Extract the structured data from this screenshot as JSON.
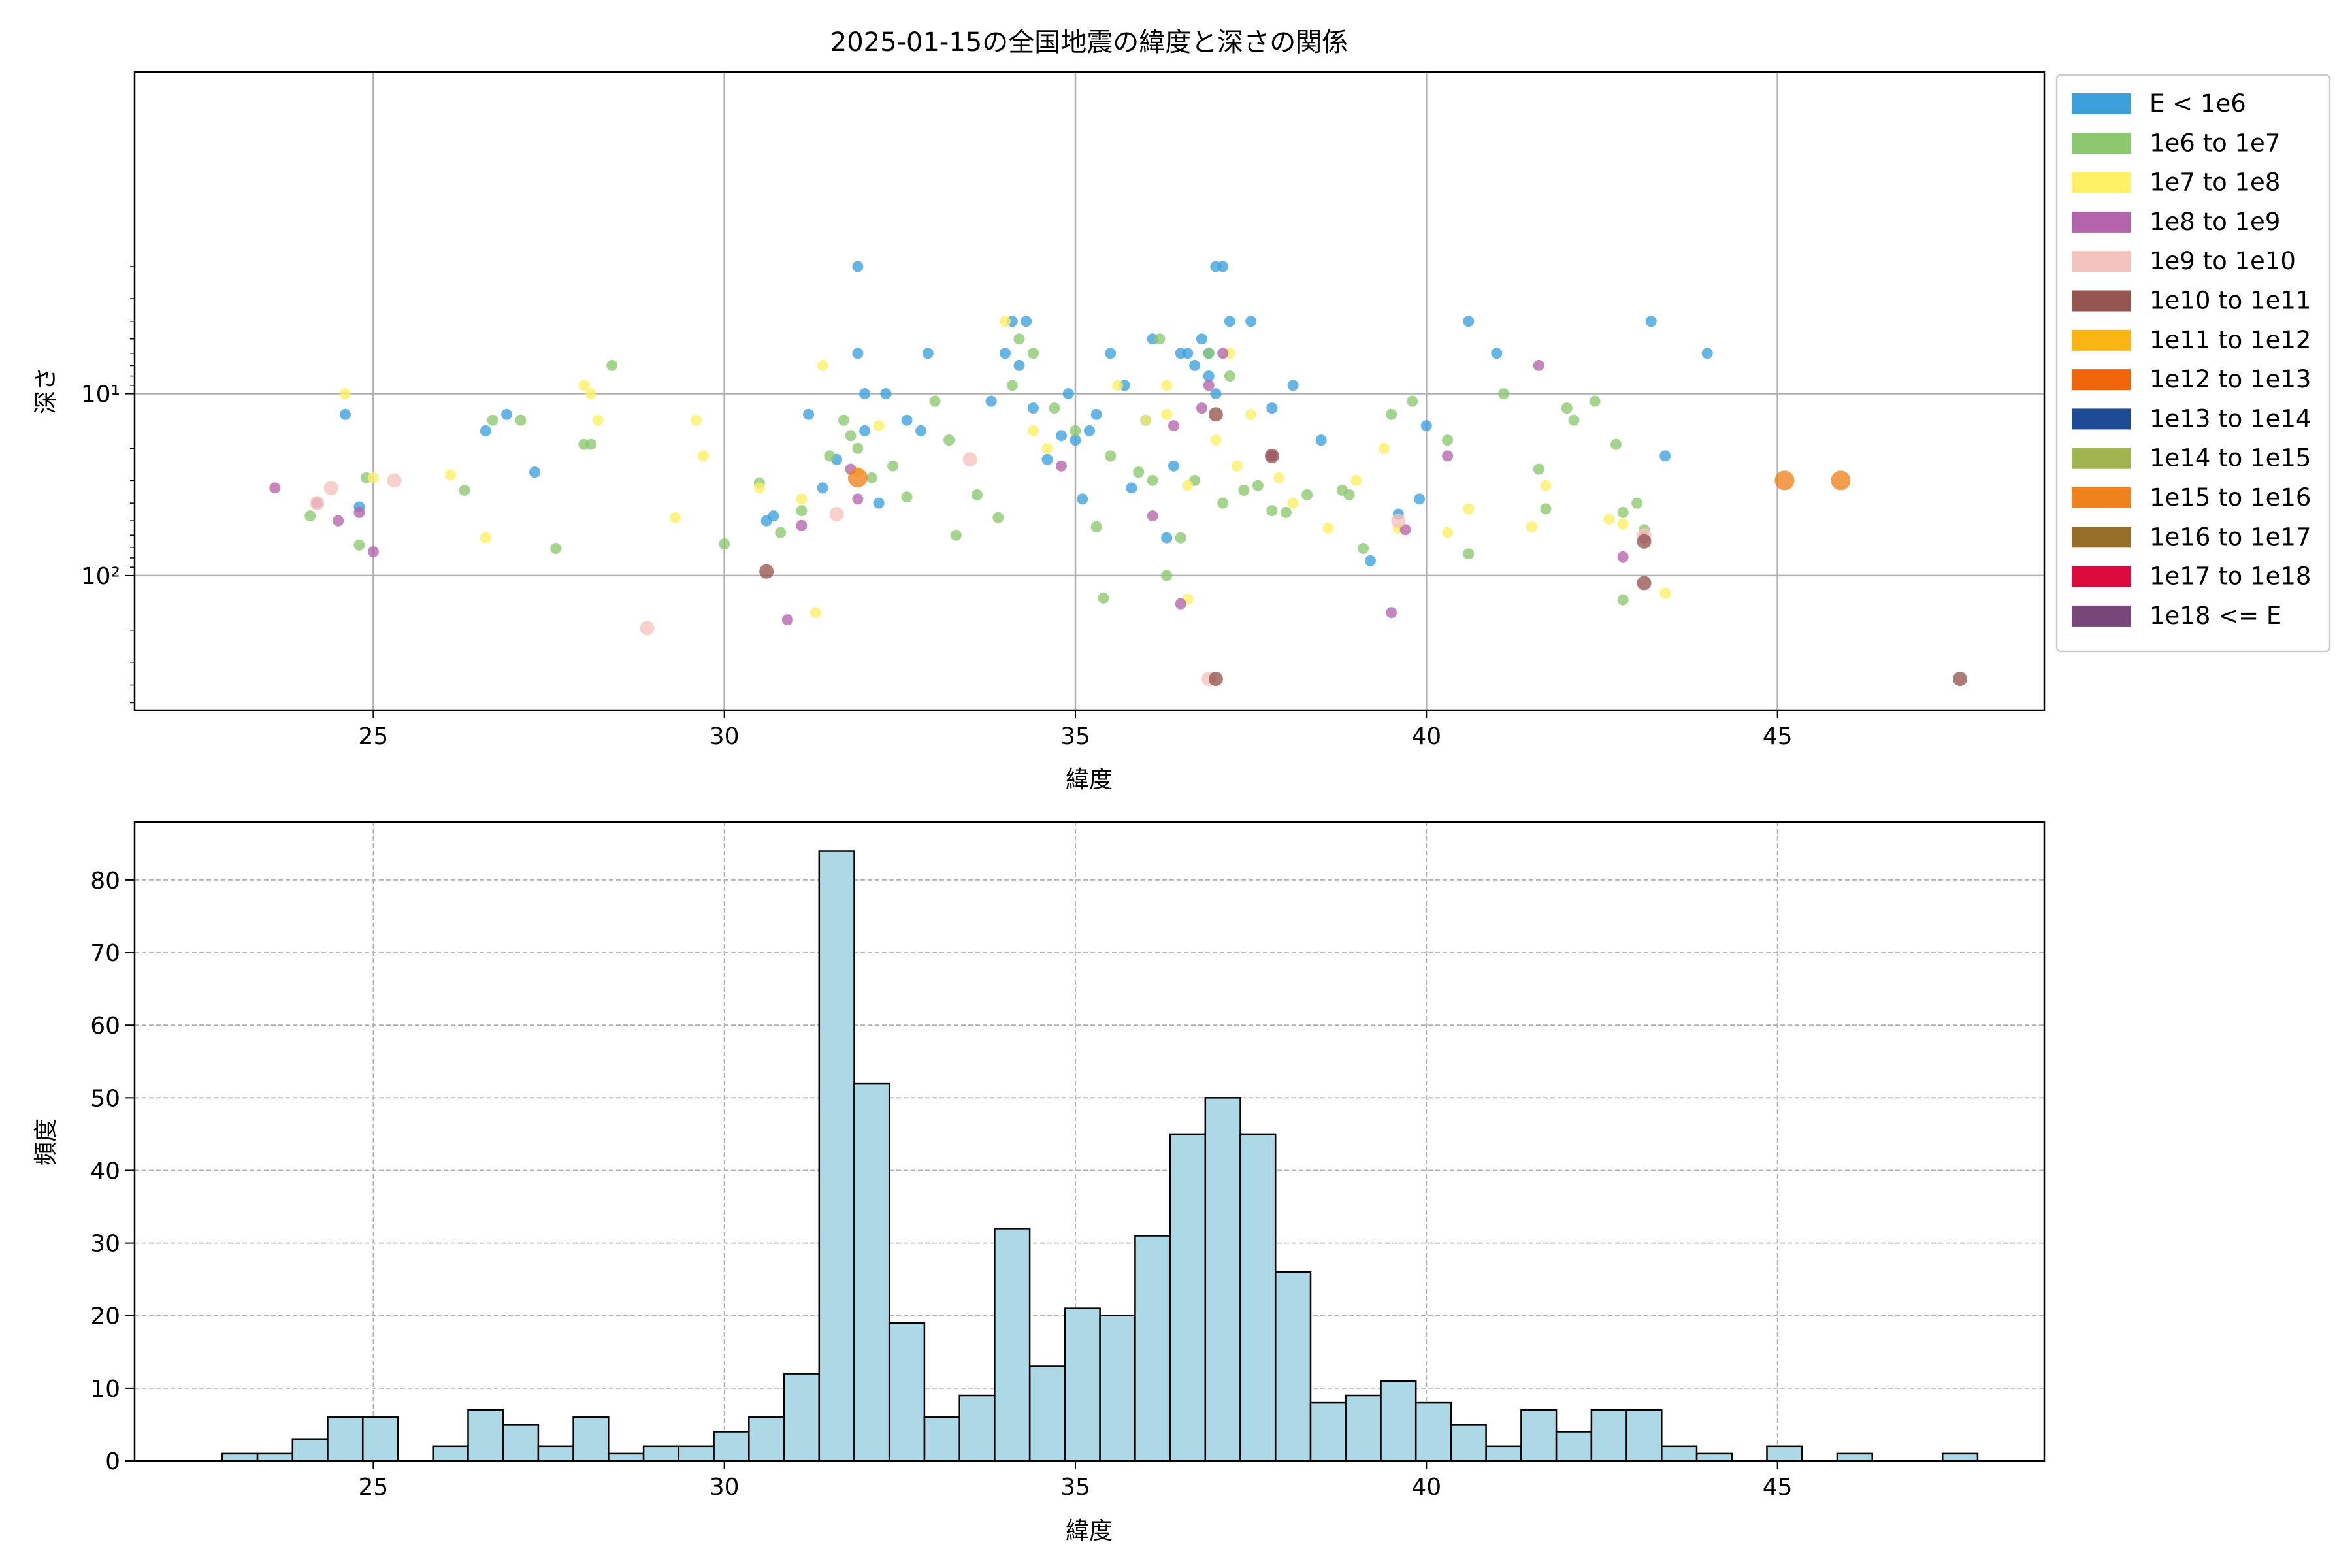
{
  "chart_data": [
    {
      "type": "scatter",
      "title": "2025-01-15の全国地震の緯度と深さの関係",
      "xlabel": "緯度",
      "ylabel": "深さ",
      "xlim": [
        21.6,
        48.8
      ],
      "ylim": [
        550,
        0.17
      ],
      "yscale": "log",
      "y_inverted": true,
      "xticks": [
        25,
        30,
        35,
        40,
        45
      ],
      "yticks": [
        10,
        100
      ],
      "ytick_labels": [
        "10¹",
        "10²"
      ],
      "grid": true,
      "legend_position": "outside-right",
      "series": [
        {
          "name": "E < 1e6",
          "color": "#3ca0dc",
          "points": [
            [
              24.6,
              13
            ],
            [
              24.8,
              42
            ],
            [
              26.6,
              16
            ],
            [
              26.9,
              13
            ],
            [
              27.3,
              27
            ],
            [
              30.7,
              47
            ],
            [
              31.2,
              13
            ],
            [
              31.4,
              33
            ],
            [
              31.6,
              23
            ],
            [
              31.9,
              2
            ],
            [
              31.9,
              6
            ],
            [
              32.0,
              10
            ],
            [
              32.0,
              16
            ],
            [
              32.3,
              10
            ],
            [
              32.6,
              14
            ],
            [
              32.8,
              16
            ],
            [
              32.9,
              6
            ],
            [
              34.0,
              6
            ],
            [
              34.1,
              4
            ],
            [
              34.2,
              7
            ],
            [
              34.3,
              4
            ],
            [
              34.4,
              12
            ],
            [
              34.6,
              23
            ],
            [
              34.8,
              17
            ],
            [
              34.9,
              10
            ],
            [
              35.0,
              18
            ],
            [
              35.1,
              38
            ],
            [
              35.3,
              13
            ],
            [
              35.5,
              6
            ],
            [
              35.7,
              9
            ],
            [
              35.8,
              33
            ],
            [
              36.1,
              5
            ],
            [
              36.3,
              62
            ],
            [
              36.4,
              25
            ],
            [
              36.5,
              6
            ],
            [
              36.6,
              6
            ],
            [
              36.7,
              7
            ],
            [
              36.8,
              5
            ],
            [
              36.9,
              6
            ],
            [
              37.0,
              2
            ],
            [
              37.1,
              2
            ],
            [
              37.2,
              4
            ],
            [
              37.5,
              4
            ],
            [
              37.8,
              12
            ],
            [
              38.1,
              9
            ],
            [
              38.5,
              18
            ],
            [
              39.2,
              83
            ],
            [
              39.6,
              46
            ],
            [
              39.9,
              38
            ],
            [
              40.0,
              15
            ],
            [
              40.6,
              4
            ],
            [
              41.0,
              6
            ],
            [
              43.2,
              4
            ],
            [
              43.4,
              22
            ],
            [
              44.0,
              6
            ],
            [
              32.2,
              40
            ],
            [
              30.6,
              50
            ],
            [
              36.9,
              8
            ],
            [
              37.0,
              10
            ],
            [
              33.8,
              11
            ],
            [
              35.2,
              16
            ],
            [
              36.0,
              14
            ]
          ]
        },
        {
          "name": "1e6 to 1e7",
          "color": "#8cc86e",
          "points": [
            [
              24.1,
              47
            ],
            [
              24.8,
              68
            ],
            [
              24.9,
              29
            ],
            [
              26.3,
              34
            ],
            [
              26.7,
              14
            ],
            [
              27.1,
              14
            ],
            [
              27.6,
              71
            ],
            [
              28.0,
              19
            ],
            [
              28.1,
              19
            ],
            [
              28.4,
              7
            ],
            [
              30.0,
              67
            ],
            [
              30.5,
              31
            ],
            [
              30.8,
              58
            ],
            [
              31.1,
              44
            ],
            [
              31.5,
              22
            ],
            [
              31.7,
              14
            ],
            [
              31.8,
              17
            ],
            [
              31.9,
              20
            ],
            [
              32.1,
              29
            ],
            [
              32.4,
              25
            ],
            [
              32.6,
              37
            ],
            [
              33.0,
              11
            ],
            [
              33.2,
              18
            ],
            [
              33.3,
              60
            ],
            [
              33.6,
              36
            ],
            [
              33.9,
              48
            ],
            [
              34.1,
              9
            ],
            [
              34.2,
              5
            ],
            [
              34.4,
              6
            ],
            [
              34.7,
              12
            ],
            [
              35.0,
              16
            ],
            [
              35.3,
              54
            ],
            [
              35.5,
              22
            ],
            [
              35.9,
              27
            ],
            [
              36.1,
              30
            ],
            [
              36.3,
              100
            ],
            [
              36.5,
              62
            ],
            [
              36.7,
              30
            ],
            [
              36.9,
              6
            ],
            [
              37.2,
              8
            ],
            [
              37.4,
              34
            ],
            [
              37.6,
              32
            ],
            [
              37.8,
              44
            ],
            [
              38.0,
              45
            ],
            [
              38.3,
              36
            ],
            [
              38.8,
              34
            ],
            [
              39.1,
              71
            ],
            [
              39.5,
              13
            ],
            [
              39.8,
              11
            ],
            [
              40.3,
              18
            ],
            [
              40.6,
              76
            ],
            [
              41.1,
              10
            ],
            [
              41.6,
              26
            ],
            [
              42.1,
              14
            ],
            [
              42.4,
              11
            ],
            [
              42.7,
              19
            ],
            [
              42.8,
              45
            ],
            [
              43.1,
              56
            ],
            [
              42.8,
              136
            ],
            [
              35.4,
              133
            ],
            [
              36.2,
              5
            ],
            [
              37.1,
              40
            ],
            [
              38.9,
              36
            ],
            [
              41.7,
              43
            ],
            [
              42.0,
              12
            ],
            [
              43.0,
              40
            ]
          ]
        },
        {
          "name": "1e7 to 1e8",
          "color": "#fff064",
          "points": [
            [
              24.6,
              10
            ],
            [
              25.0,
              29
            ],
            [
              26.1,
              28
            ],
            [
              26.6,
              62
            ],
            [
              28.0,
              9
            ],
            [
              28.1,
              10
            ],
            [
              28.2,
              14
            ],
            [
              29.3,
              48
            ],
            [
              29.6,
              14
            ],
            [
              29.7,
              22
            ],
            [
              30.5,
              33
            ],
            [
              31.1,
              38
            ],
            [
              31.4,
              7
            ],
            [
              31.9,
              27
            ],
            [
              32.2,
              15
            ],
            [
              34.0,
              4
            ],
            [
              34.4,
              16
            ],
            [
              34.6,
              20
            ],
            [
              35.6,
              9
            ],
            [
              36.3,
              13
            ],
            [
              36.6,
              32
            ],
            [
              37.0,
              18
            ],
            [
              37.2,
              6
            ],
            [
              37.5,
              13
            ],
            [
              37.9,
              29
            ],
            [
              38.1,
              40
            ],
            [
              38.6,
              55
            ],
            [
              39.4,
              20
            ],
            [
              39.6,
              55
            ],
            [
              40.3,
              58
            ],
            [
              40.6,
              43
            ],
            [
              41.5,
              54
            ],
            [
              41.7,
              32
            ],
            [
              42.6,
              49
            ],
            [
              42.8,
              52
            ],
            [
              43.4,
              125
            ],
            [
              31.3,
              160
            ],
            [
              36.6,
              135
            ],
            [
              36.3,
              9
            ],
            [
              37.3,
              25
            ],
            [
              39.0,
              30
            ],
            [
              36.0,
              14
            ]
          ]
        },
        {
          "name": "1e8 to 1e9",
          "color": "#b464aa",
          "points": [
            [
              23.6,
              33
            ],
            [
              24.2,
              40
            ],
            [
              24.5,
              50
            ],
            [
              24.8,
              45
            ],
            [
              25.0,
              74
            ],
            [
              31.1,
              53
            ],
            [
              31.8,
              26
            ],
            [
              31.9,
              38
            ],
            [
              34.8,
              25
            ],
            [
              36.1,
              47
            ],
            [
              36.4,
              15
            ],
            [
              36.5,
              143
            ],
            [
              36.9,
              9
            ],
            [
              37.1,
              6
            ],
            [
              37.8,
              22
            ],
            [
              39.5,
              160
            ],
            [
              39.7,
              56
            ],
            [
              40.3,
              22
            ],
            [
              41.6,
              7
            ],
            [
              42.8,
              79
            ],
            [
              43.1,
              62
            ],
            [
              30.9,
              175
            ],
            [
              36.8,
              12
            ]
          ]
        },
        {
          "name": "1e9 to 1e10",
          "color": "#f5c3be",
          "points": [
            [
              24.2,
              40
            ],
            [
              24.4,
              33
            ],
            [
              25.3,
              30
            ],
            [
              28.9,
              195
            ],
            [
              31.6,
              46
            ],
            [
              33.5,
              23
            ],
            [
              36.9,
              370
            ],
            [
              43.1,
              60
            ],
            [
              39.6,
              50
            ]
          ]
        },
        {
          "name": "1e10 to 1e11",
          "color": "#965550",
          "points": [
            [
              30.6,
              95
            ],
            [
              37.0,
              370
            ],
            [
              43.1,
              110
            ],
            [
              47.6,
              370
            ],
            [
              37.8,
              22
            ],
            [
              43.1,
              65
            ],
            [
              37.0,
              13
            ]
          ]
        },
        {
          "name": "1e15 to 1e16",
          "color": "#f0821e",
          "points": [
            [
              31.9,
              29
            ],
            [
              45.1,
              30
            ],
            [
              45.9,
              30
            ]
          ]
        }
      ],
      "legend": [
        {
          "label": "E < 1e6",
          "color": "#3ca0dc"
        },
        {
          "label": "1e6 to 1e7",
          "color": "#8cc86e"
        },
        {
          "label": "1e7 to 1e8",
          "color": "#fff064"
        },
        {
          "label": "1e8 to 1e9",
          "color": "#b464aa"
        },
        {
          "label": "1e9 to 1e10",
          "color": "#f5c3be"
        },
        {
          "label": "1e10 to 1e11",
          "color": "#965550"
        },
        {
          "label": "1e11 to 1e12",
          "color": "#fab414"
        },
        {
          "label": "1e12 to 1e13",
          "color": "#f0640a"
        },
        {
          "label": "1e13 to 1e14",
          "color": "#1e4b96"
        },
        {
          "label": "1e14 to 1e15",
          "color": "#a0b450"
        },
        {
          "label": "1e15 to 1e16",
          "color": "#f0821e"
        },
        {
          "label": "1e16 to 1e17",
          "color": "#966e28"
        },
        {
          "label": "1e17 to 1e18",
          "color": "#dc0a3c"
        },
        {
          "label": "1e18 <= E",
          "color": "#784678"
        }
      ]
    },
    {
      "type": "bar",
      "subtype": "histogram",
      "xlabel": "緯度",
      "ylabel": "頻度",
      "xlim": [
        21.6,
        48.8
      ],
      "ylim": [
        0,
        88
      ],
      "xticks": [
        25,
        30,
        35,
        40,
        45
      ],
      "yticks": [
        0,
        10,
        20,
        30,
        40,
        50,
        60,
        70,
        80
      ],
      "grid": true,
      "bar_color": "#add8e6",
      "edge_color": "#000000",
      "bin_start": 22.85,
      "bin_width": 0.5,
      "values": [
        1,
        1,
        3,
        6,
        6,
        0,
        2,
        7,
        5,
        2,
        6,
        1,
        2,
        2,
        4,
        6,
        12,
        84,
        52,
        19,
        6,
        9,
        32,
        13,
        21,
        20,
        31,
        45,
        50,
        45,
        26,
        8,
        9,
        11,
        8,
        5,
        2,
        7,
        4,
        7,
        7,
        2,
        1,
        0,
        2,
        0,
        1,
        0,
        0,
        1
      ]
    }
  ]
}
